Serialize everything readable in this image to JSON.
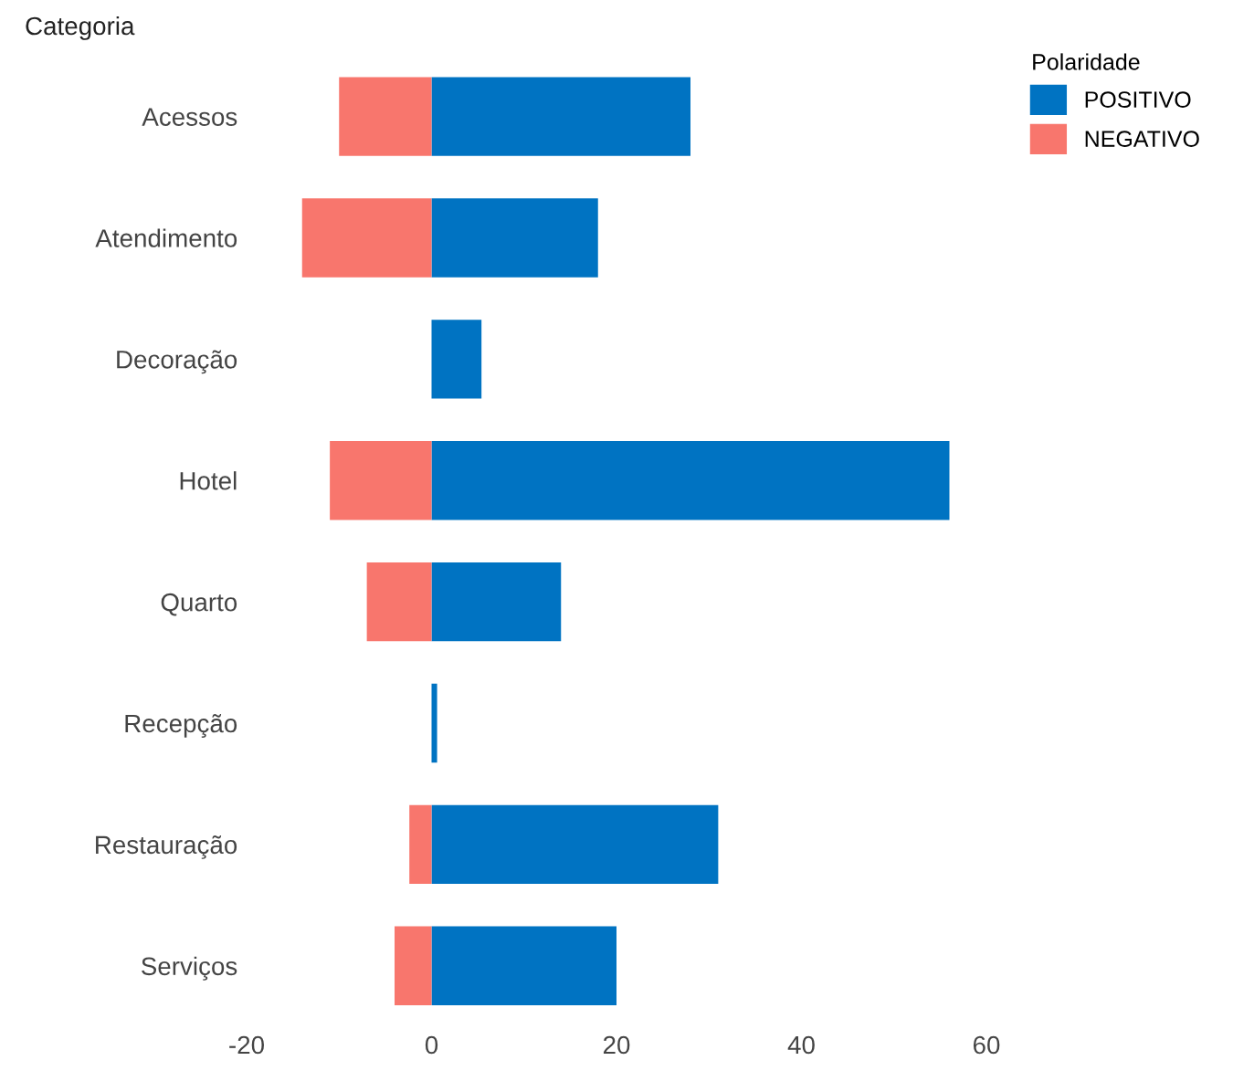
{
  "chart_data": {
    "type": "bar",
    "orientation": "horizontal",
    "ylabel": "Categoria",
    "legend_title": "Polaridade",
    "legend": "top right",
    "grid": false,
    "categories": [
      "Acessos",
      "Atendimento",
      "Decoração",
      "Hotel",
      "Quarto",
      "Recepção",
      "Restauração",
      "Serviços"
    ],
    "series": [
      {
        "name": "POSITIVO",
        "color": "#0073c2",
        "values": [
          28,
          18,
          5.4,
          56,
          14,
          0.6,
          31,
          20
        ]
      },
      {
        "name": "NEGATIVO",
        "color": "#f8766d",
        "values": [
          -10,
          -14,
          null,
          -11,
          -7,
          null,
          -2.4,
          -4
        ]
      }
    ],
    "stacked": true,
    "xlim": [
      -20,
      60
    ],
    "xticks": [
      -20,
      0,
      20,
      40,
      60
    ]
  }
}
